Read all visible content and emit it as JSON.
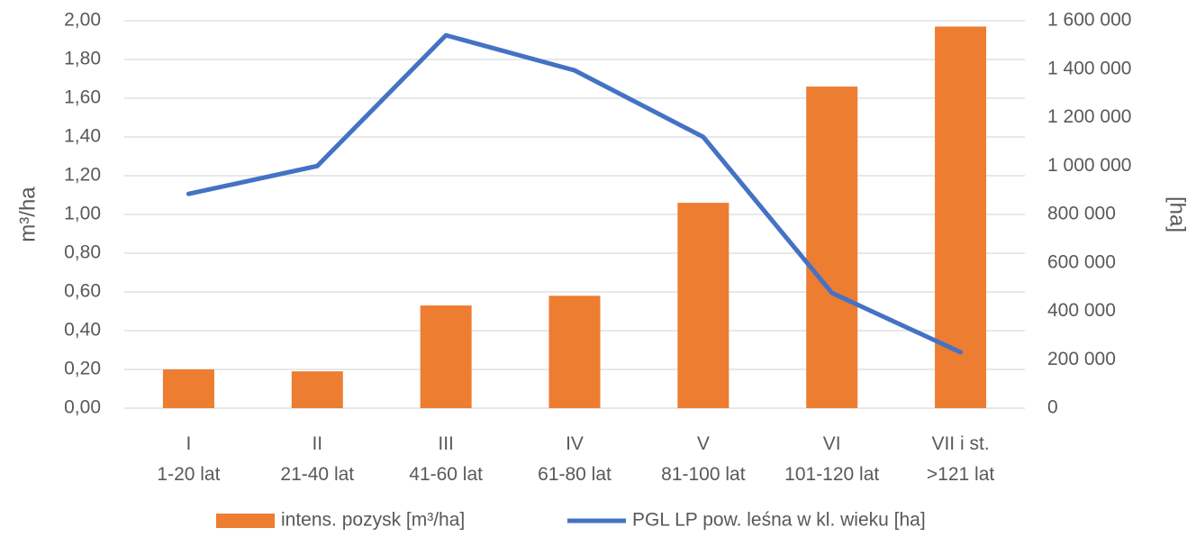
{
  "chart_data": {
    "type": "bar",
    "categories": [
      "I\n1-20 lat",
      "II\n21-40 lat",
      "III\n41-60 lat",
      "IV\n61-80 lat",
      "V\n81-100 lat",
      "VI\n101-120 lat",
      "VII i st.\n>121 lat"
    ],
    "y_label": "m³/ha",
    "y2_label": "[ha]",
    "ylim": [
      0,
      2
    ],
    "yticks": [
      {
        "value": 0,
        "label": "0,00"
      },
      {
        "value": 0.2,
        "label": "0,20"
      },
      {
        "value": 0.4,
        "label": "0,40"
      },
      {
        "value": 0.6,
        "label": "0,60"
      },
      {
        "value": 0.8,
        "label": "0,80"
      },
      {
        "value": 1.0,
        "label": "1,00"
      },
      {
        "value": 1.2,
        "label": "1,20"
      },
      {
        "value": 1.4,
        "label": "1,40"
      },
      {
        "value": 1.6,
        "label": "1,60"
      },
      {
        "value": 1.8,
        "label": "1,80"
      },
      {
        "value": 2.0,
        "label": "2,00"
      }
    ],
    "y2lim": [
      0,
      1600000
    ],
    "y2ticks": [
      0,
      {
        "value": 200000,
        "label": "200 000"
      },
      {
        "value": 400000,
        "label": "400 000"
      },
      {
        "value": 600000,
        "label": "600 000"
      },
      {
        "value": 800000,
        "label": "800 000"
      },
      {
        "value": 1000000,
        "label": "1 000 000"
      },
      {
        "value": 1200000,
        "label": "1 200 000"
      },
      {
        "value": 1400000,
        "label": "1 400 000"
      },
      {
        "value": 1600000,
        "label": "1 600 000"
      }
    ],
    "grid": true,
    "legend": "bottom",
    "series": [
      {
        "name": "intens. pozysk [m³/ha]",
        "type": "bar",
        "axis": "y",
        "color": "#ED7D31",
        "values": [
          0.2,
          0.19,
          0.53,
          0.58,
          1.06,
          1.66,
          1.97
        ]
      },
      {
        "name": "PGL LP pow. leśna w kl. wieku [ha]",
        "type": "line",
        "axis": "y2",
        "color": "#4472C4",
        "values": [
          885000,
          1000000,
          1540000,
          1395000,
          1120000,
          476000,
          231000
        ]
      }
    ]
  }
}
